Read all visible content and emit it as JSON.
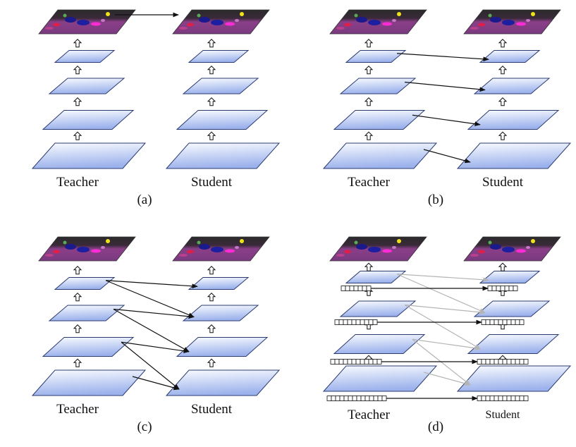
{
  "panels": [
    {
      "id": "a",
      "caption": "(a)",
      "teacher_label": "Teacher",
      "student_label": "Student",
      "connection_style": "output only",
      "connections": [
        {
          "from": "T-output",
          "to": "S-output",
          "color": "#111111"
        }
      ]
    },
    {
      "id": "b",
      "caption": "(b)",
      "teacher_label": "Teacher",
      "student_label": "Student",
      "connection_style": "layer to same layer",
      "connections": [
        {
          "from": "T1",
          "to": "S1",
          "color": "#111111"
        },
        {
          "from": "T2",
          "to": "S2",
          "color": "#111111"
        },
        {
          "from": "T3",
          "to": "S3",
          "color": "#111111"
        },
        {
          "from": "T4",
          "to": "S4",
          "color": "#111111"
        }
      ]
    },
    {
      "id": "c",
      "caption": "(c)",
      "teacher_label": "Teacher",
      "student_label": "Student",
      "connection_style": "layer to multiple layers",
      "connections": [
        {
          "from": "T1",
          "to": "S1",
          "color": "#111111"
        },
        {
          "from": "T1",
          "to": "S2",
          "color": "#111111"
        },
        {
          "from": "T2",
          "to": "S2",
          "color": "#111111"
        },
        {
          "from": "T2",
          "to": "S3",
          "color": "#111111"
        },
        {
          "from": "T3",
          "to": "S3",
          "color": "#111111"
        },
        {
          "from": "T3",
          "to": "S4",
          "color": "#111111"
        },
        {
          "from": "T4",
          "to": "S4",
          "color": "#111111"
        }
      ]
    },
    {
      "id": "d",
      "caption": "(d)",
      "teacher_label": "Teacher",
      "student_label": "Student",
      "connection_style": "feature vectors plus grey layer links",
      "connections": [
        {
          "from": "T1",
          "to": "S1",
          "color": "#b4b4b4"
        },
        {
          "from": "T1",
          "to": "S2",
          "color": "#b4b4b4"
        },
        {
          "from": "T2",
          "to": "S2",
          "color": "#b4b4b4"
        },
        {
          "from": "T2",
          "to": "S3",
          "color": "#b4b4b4"
        },
        {
          "from": "T3",
          "to": "S3",
          "color": "#b4b4b4"
        },
        {
          "from": "T3",
          "to": "S4",
          "color": "#b4b4b4"
        },
        {
          "from": "T4",
          "to": "S4",
          "color": "#b4b4b4"
        }
      ],
      "vector_links_color": "#111111"
    }
  ],
  "colors": {
    "layer_fill_top": "#fafcff",
    "layer_fill_bottom": "#9cb2ec",
    "layer_stroke": "#2b3b70",
    "arrow": "#111111",
    "gray_arrow": "#b4b4b4",
    "output_base": "#8a3f88",
    "output_dark": "#2a2a2a"
  },
  "icons": {
    "flow": "hollow-up-arrow-icon",
    "output": "segmentation-map-image"
  }
}
